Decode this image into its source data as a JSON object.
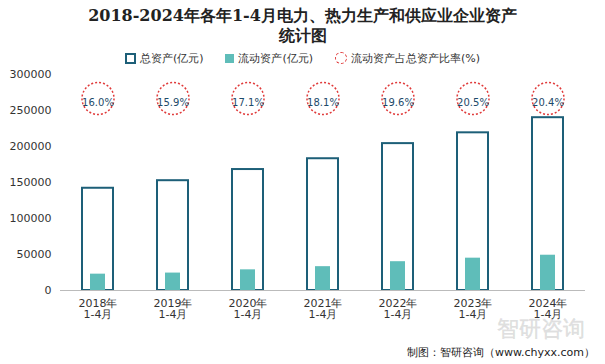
{
  "chart_data": {
    "type": "bar",
    "title": "2018-2024年各年1-4月电力、热力生产和供应业企业资产统计图",
    "caption": "制图：智研咨询（www.chyxx.com）",
    "watermark": "智研咨询",
    "categories": [
      "2018年\n1-4月",
      "2019年\n1-4月",
      "2020年\n1-4月",
      "2021年\n1-4月",
      "2022年\n1-4月",
      "2023年\n1-4月",
      "2024年\n1-4月"
    ],
    "series": [
      {
        "name": "总资产(亿元)",
        "type": "bar",
        "color": "#1d5f78",
        "values": [
          142000,
          152500,
          168000,
          183000,
          204000,
          219000,
          240000
        ]
      },
      {
        "name": "流动资产(亿元)",
        "type": "bar",
        "color": "#5fbdb9",
        "values": [
          22700,
          24200,
          28700,
          33100,
          40000,
          44900,
          49000
        ]
      },
      {
        "name": "流动资产占总资产比率(%)",
        "type": "scatter",
        "marker": "circle",
        "line_style": "dashed",
        "color": "#e03a3a",
        "values": [
          16.0,
          15.9,
          17.1,
          18.1,
          19.6,
          20.5,
          20.4
        ],
        "value_labels": [
          "16.0%",
          "15.9%",
          "17.1%",
          "18.1%",
          "19.6%",
          "20.5%",
          "20.4%"
        ]
      }
    ],
    "ylim": [
      0,
      300000
    ],
    "yticks": [
      0,
      50000,
      100000,
      150000,
      200000,
      250000,
      300000
    ],
    "grid": false,
    "legend": "top",
    "data_labels": true
  }
}
